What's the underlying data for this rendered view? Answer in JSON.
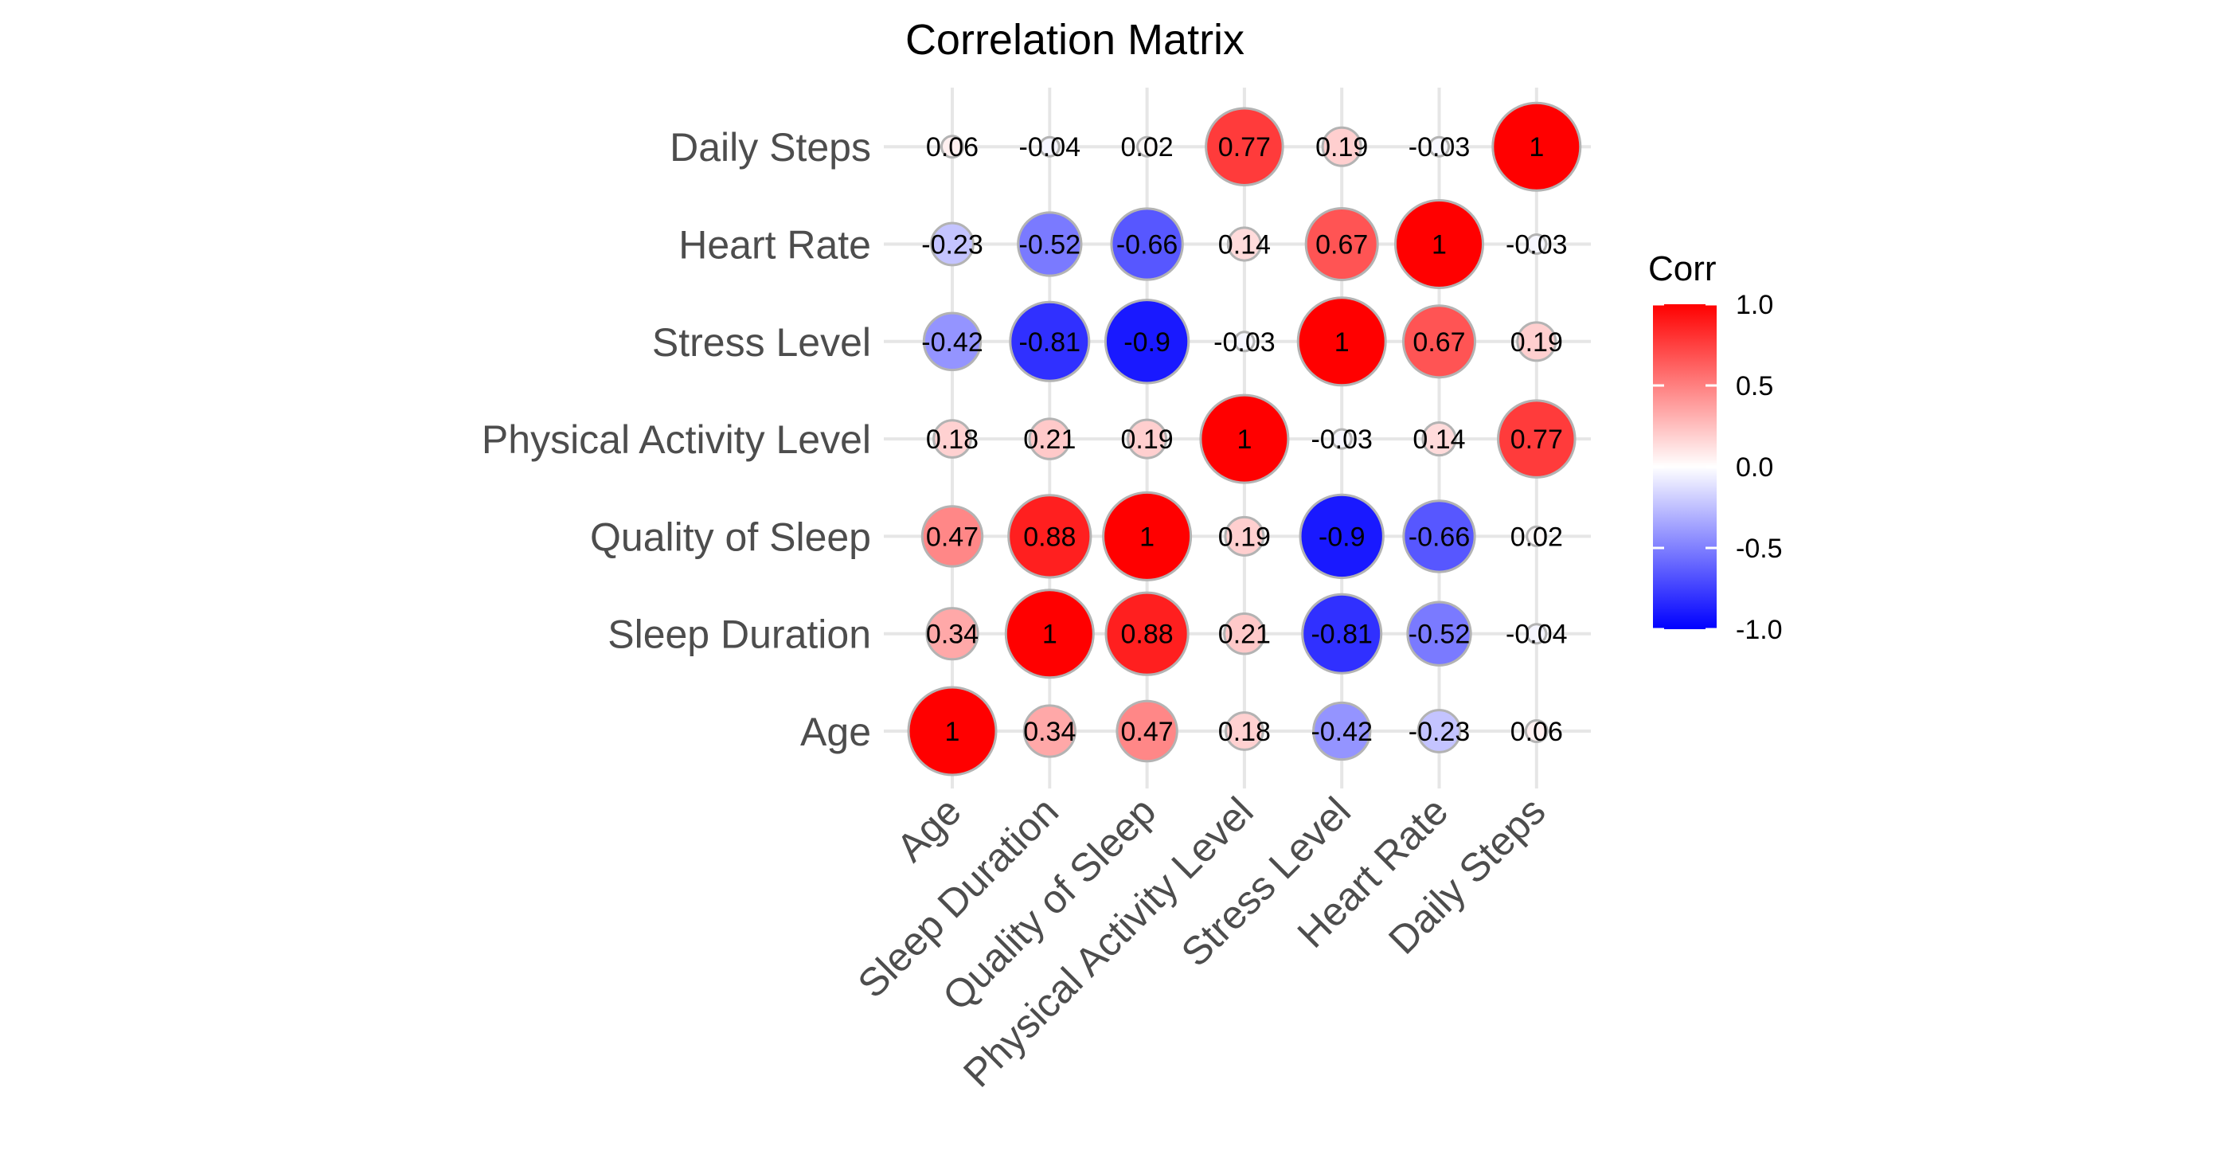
{
  "chart_data": {
    "type": "correlation-matrix",
    "title": "Correlation Matrix",
    "variables": [
      "Age",
      "Sleep Duration",
      "Quality of Sleep",
      "Physical Activity Level",
      "Stress Level",
      "Heart Rate",
      "Daily Steps"
    ],
    "matrix": [
      [
        1,
        0.34,
        0.47,
        0.18,
        -0.42,
        -0.23,
        0.06
      ],
      [
        0.34,
        1,
        0.88,
        0.21,
        -0.81,
        -0.52,
        -0.04
      ],
      [
        0.47,
        0.88,
        1,
        0.19,
        -0.9,
        -0.66,
        0.02
      ],
      [
        0.18,
        0.21,
        0.19,
        1,
        -0.03,
        0.14,
        0.77
      ],
      [
        -0.42,
        -0.81,
        -0.9,
        -0.03,
        1,
        0.67,
        0.19
      ],
      [
        -0.23,
        -0.52,
        -0.66,
        0.14,
        0.67,
        1,
        -0.03
      ],
      [
        0.06,
        -0.04,
        0.02,
        0.77,
        0.19,
        -0.03,
        1
      ]
    ],
    "color_scale": {
      "low": "#0000ff",
      "mid": "#ffffff",
      "high": "#ff0000",
      "limits": [
        -1,
        1
      ]
    },
    "legend": {
      "title": "Corr",
      "ticks": [
        {
          "value": 1,
          "label": "1.0"
        },
        {
          "value": 0.5,
          "label": "0.5"
        },
        {
          "value": 0,
          "label": "0.0"
        },
        {
          "value": -0.5,
          "label": "-0.5"
        },
        {
          "value": -1,
          "label": "-1.0"
        }
      ],
      "position": "right"
    },
    "grid": true
  }
}
